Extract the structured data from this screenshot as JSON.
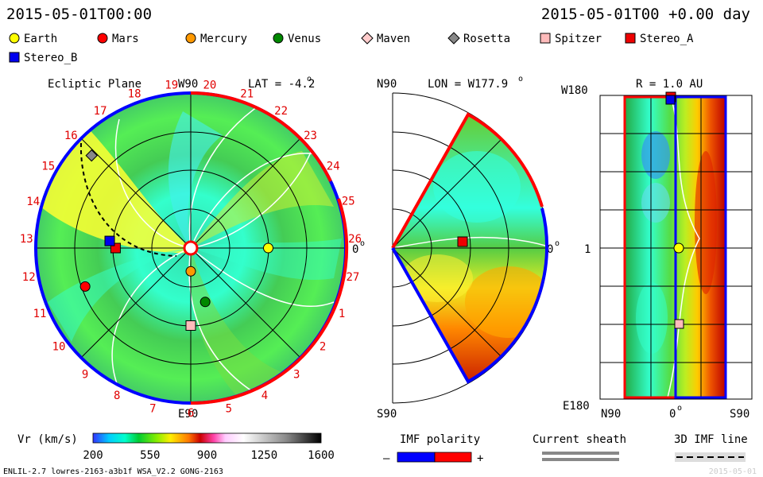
{
  "header": {
    "datetime": "2015-05-01T00:00",
    "offset": "2015-05-01T00 +0.00 day"
  },
  "legend": [
    {
      "name": "Earth",
      "color": "#ffff00",
      "shape": "circle"
    },
    {
      "name": "Mars",
      "color": "#ff0000",
      "shape": "circle"
    },
    {
      "name": "Mercury",
      "color": "#ff9900",
      "shape": "circle"
    },
    {
      "name": "Venus",
      "color": "#008800",
      "shape": "circle"
    },
    {
      "name": "Maven",
      "color": "#ffcccc",
      "shape": "diamond"
    },
    {
      "name": "Rosetta",
      "color": "#888888",
      "shape": "diamond"
    },
    {
      "name": "Spitzer",
      "color": "#ffbbbb",
      "shape": "square"
    },
    {
      "name": "Stereo_A",
      "color": "#ee0000",
      "shape": "square"
    },
    {
      "name": "Stereo_B",
      "color": "#0000ee",
      "shape": "square"
    }
  ],
  "panels": {
    "ecliptic": {
      "title": "Ecliptic Plane",
      "lat": "LAT = -4.2",
      "top": "W90",
      "bottom": "E90",
      "right": "0",
      "degree": "o",
      "ticks": [
        "19",
        "20",
        "21",
        "22",
        "23",
        "24",
        "25",
        "26",
        "27",
        "1",
        "2",
        "3",
        "4",
        "5",
        "6",
        "7",
        "8",
        "9",
        "10",
        "11",
        "12",
        "13",
        "14",
        "15",
        "16",
        "17",
        "18"
      ]
    },
    "meridional": {
      "lon": "LON = W177.9",
      "degree": "o",
      "top": "N90",
      "bottom": "S90",
      "right": "0"
    },
    "map": {
      "r": "R = 1.0 AU",
      "top": "W180",
      "mid": "1",
      "bottom": "E180",
      "xleft": "N90",
      "xmid": "0",
      "xright": "S90",
      "degree": "o"
    }
  },
  "colorbar": {
    "label": "Vr (km/s)",
    "ticks": [
      "200",
      "550",
      "900",
      "1250",
      "1600"
    ],
    "min": 200,
    "max": 1600
  },
  "imf": {
    "title": "IMF polarity",
    "minus": "–",
    "plus": "+",
    "colors": [
      "#0000ff",
      "#ff0000"
    ]
  },
  "sheath": {
    "title": "Current sheath"
  },
  "imf3d": {
    "title": "3D IMF line"
  },
  "footer": {
    "left": "ENLIL-2.7 lowres-2163-a3b1f WSA_V2.2 GONG-2163",
    "right": "2015-05-01"
  },
  "chart_data": [
    {
      "type": "heatmap",
      "title": "Ecliptic Plane",
      "subtitle": "LAT = -4.2",
      "quantity": "Vr (km/s)",
      "scale": [
        200,
        1600
      ],
      "markers": [
        {
          "name": "Earth",
          "azimuth_deg": 0,
          "r_au": 1.0
        },
        {
          "name": "Mercury",
          "azimuth_deg": -90,
          "r_au": 0.3
        },
        {
          "name": "Venus",
          "azimuth_deg": -75,
          "r_au": 0.72
        },
        {
          "name": "Mars",
          "azimuth_deg": -160,
          "r_au": 1.45
        },
        {
          "name": "Stereo_A",
          "azimuth_deg": 180,
          "r_au": 0.97
        },
        {
          "name": "Stereo_B",
          "azimuth_deg": 175,
          "r_au": 1.05
        },
        {
          "name": "Rosetta",
          "azimuth_deg": 137,
          "r_au": 1.75
        },
        {
          "name": "Spitzer",
          "azimuth_deg": -90,
          "r_au": 1.0
        }
      ]
    },
    {
      "type": "heatmap",
      "title": "LON = W177.9",
      "quantity": "Vr (km/s)",
      "scale": [
        200,
        1600
      ],
      "markers": [
        {
          "name": "Stereo_A",
          "latitude_deg": 0,
          "r_au": 0.97
        }
      ]
    },
    {
      "type": "heatmap",
      "title": "R = 1.0 AU",
      "quantity": "Vr (km/s)",
      "scale": [
        200,
        1600
      ],
      "markers": [
        {
          "name": "Stereo_A",
          "longitude": "W180",
          "latitude_deg": 0
        },
        {
          "name": "Earth",
          "longitude": "0",
          "latitude_deg": 0
        },
        {
          "name": "Spitzer",
          "longitude": "E90",
          "latitude_deg": 0
        }
      ]
    }
  ]
}
